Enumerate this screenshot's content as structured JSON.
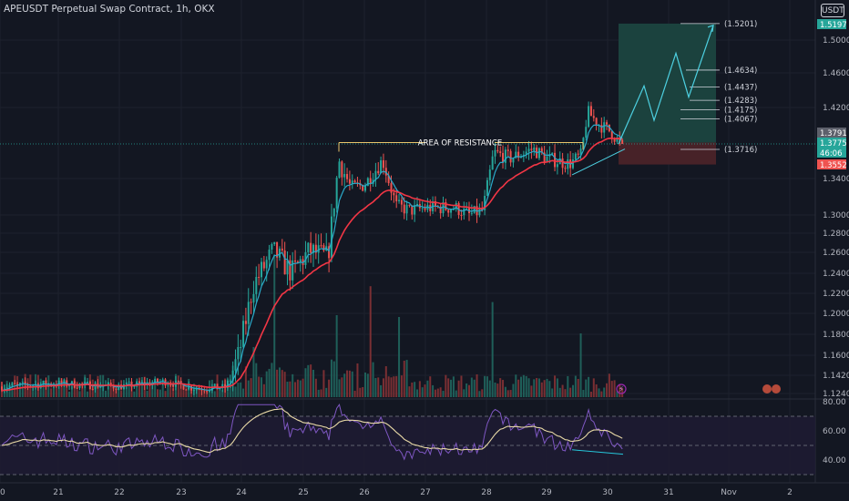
{
  "header": {
    "title": "APEUSDT Perpetual Swap Contract, 1h, OKX",
    "currency_button": "USDT"
  },
  "chart_data": [
    {
      "type": "candlestick",
      "symbol": "APEUSDT",
      "interval": "1h",
      "exchange": "OKX",
      "x_labels": [
        "20",
        "21",
        "22",
        "23",
        "24",
        "25",
        "26",
        "27",
        "28",
        "29",
        "30",
        "31",
        "Nov",
        "2"
      ],
      "y_ticks": [
        1.124,
        1.142,
        1.16,
        1.18,
        1.2,
        1.22,
        1.24,
        1.26,
        1.28,
        1.3,
        1.34,
        1.42,
        1.46,
        1.5
      ],
      "ylim": [
        1.124,
        1.54
      ],
      "price_labels": [
        {
          "text": "1.5197",
          "value": 1.5197,
          "color": "#26a69a"
        },
        {
          "text": "1.3791",
          "value": 1.3791,
          "color": "#5d606b"
        },
        {
          "text": "1.3775",
          "value": 1.3775,
          "color": "#26a69a"
        },
        {
          "text": "46:06",
          "value": 1.3712,
          "color": "#26a69a"
        },
        {
          "text": "1.3552",
          "value": 1.3552,
          "color": "#ef5350"
        }
      ],
      "annotations": [
        {
          "text": "AREA OF RESISTANCE",
          "value": 1.3791
        },
        {
          "text": "(1.5201)",
          "value": 1.5201
        },
        {
          "text": "(1.4634)",
          "value": 1.4634
        },
        {
          "text": "(1.4437)",
          "value": 1.4437
        },
        {
          "text": "(1.4283)",
          "value": 1.4283
        },
        {
          "text": "(1.4175)",
          "value": 1.4175
        },
        {
          "text": "(1.4067)",
          "value": 1.4067
        },
        {
          "text": "(1.3716)",
          "value": 1.3716
        }
      ],
      "position": {
        "entry": 1.3791,
        "target": 1.5201,
        "stop": 1.3552
      },
      "projection": [
        1.3775,
        1.445,
        1.405,
        1.484,
        1.432,
        1.518
      ],
      "colors": {
        "up": "#26a69a",
        "down": "#ef5350",
        "ema": "#f23645",
        "fast": "#2aa9c9",
        "target_zone": "#1b4440",
        "stop_zone": "#4a2329"
      }
    },
    {
      "type": "line",
      "name": "RSI",
      "y_ticks": [
        80.0,
        60.0,
        40.0
      ],
      "ylim": [
        35,
        82
      ],
      "levels": [
        70,
        50,
        30
      ],
      "colors": {
        "rsi": "#7e57c2",
        "signal": "#e8d9a6",
        "divergence": "#26c6da"
      }
    }
  ]
}
